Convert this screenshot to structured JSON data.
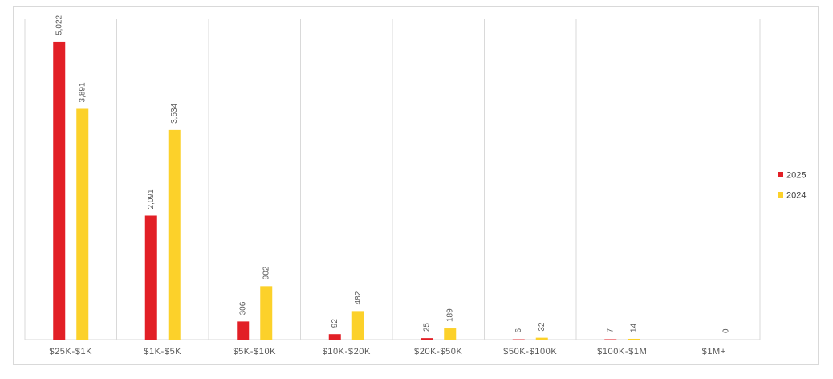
{
  "chart_data": {
    "type": "bar",
    "title": "",
    "xlabel": "",
    "ylabel": "",
    "categories": [
      "$25K-$1K",
      "$1K-$5K",
      "$5K-$10K",
      "$10K-$20K",
      "$20K-$50K",
      "$50K-$100K",
      "$100K-$1M",
      "$1M+"
    ],
    "series": [
      {
        "name": "2025",
        "color": "#e21f26",
        "values": [
          5022,
          2091,
          306,
          92,
          25,
          6,
          7,
          null
        ],
        "labels": [
          "5,022",
          "2,091",
          "306",
          "92",
          "25",
          "6",
          "7",
          ""
        ]
      },
      {
        "name": "2024",
        "color": "#fcd12a",
        "values": [
          3891,
          3534,
          902,
          482,
          189,
          32,
          14,
          0
        ],
        "labels": [
          "3,891",
          "3,534",
          "902",
          "482",
          "189",
          "32",
          "14",
          "0"
        ]
      }
    ],
    "ylim": [
      0,
      5400
    ],
    "grid": "vertical category separators",
    "legend_position": "right"
  }
}
